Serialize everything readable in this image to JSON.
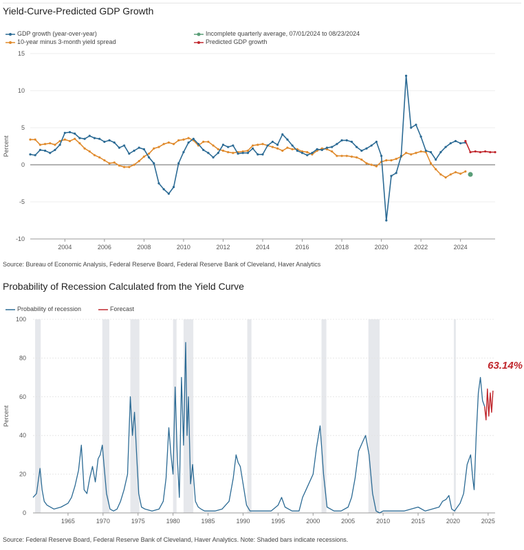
{
  "chart1": {
    "title": "Yield-Curve-Predicted GDP Growth",
    "legend": {
      "gdp": "GDP growth (year-over-year)",
      "spread": "10-year minus 3-month yield spread",
      "incomplete": "Incomplete quarterly average, 07/01/2024 to 08/23/2024",
      "predicted": "Predicted GDP growth"
    },
    "ylabel": "Percent",
    "source": "Source: Bureau of Economic Analysis, Federal Reserve Board, Federal Reserve Bank of Cleveland, Haver Analytics"
  },
  "chart2": {
    "title": "Probability of Recession Calculated from the Yield Curve",
    "legend": {
      "prob": "Probability of recession",
      "forecast": "Forecast"
    },
    "ylabel": "Percent",
    "annotation": "63.14%",
    "source": "Source: Federal Reserve Board, Federal Reserve Bank of Cleveland, Haver Analytics. Note: Shaded bars indicate recessions."
  },
  "colors": {
    "gdp": "#2b6a94",
    "spread": "#e08a2c",
    "incomplete": "#5a9e78",
    "predicted": "#c0272d",
    "recession": "#e6e8ec"
  },
  "chart_data": [
    {
      "type": "line",
      "title": "Yield-Curve-Predicted GDP Growth",
      "ylabel": "Percent",
      "xlim": [
        2002.25,
        2025.75
      ],
      "ylim": [
        -10,
        15
      ],
      "yticks": [
        -10,
        -5,
        0,
        5,
        10,
        15
      ],
      "xticks": [
        2004,
        2006,
        2008,
        2010,
        2012,
        2014,
        2016,
        2018,
        2020,
        2022,
        2024
      ],
      "series": [
        {
          "name": "GDP growth (year-over-year)",
          "x": [
            2002.25,
            2002.5,
            2002.75,
            2003.0,
            2003.25,
            2003.5,
            2003.75,
            2004.0,
            2004.25,
            2004.5,
            2004.75,
            2005.0,
            2005.25,
            2005.5,
            2005.75,
            2006.0,
            2006.25,
            2006.5,
            2006.75,
            2007.0,
            2007.25,
            2007.5,
            2007.75,
            2008.0,
            2008.25,
            2008.5,
            2008.75,
            2009.0,
            2009.25,
            2009.5,
            2009.75,
            2010.0,
            2010.25,
            2010.5,
            2010.75,
            2011.0,
            2011.25,
            2011.5,
            2011.75,
            2012.0,
            2012.25,
            2012.5,
            2012.75,
            2013.0,
            2013.25,
            2013.5,
            2013.75,
            2014.0,
            2014.25,
            2014.5,
            2014.75,
            2015.0,
            2015.25,
            2015.5,
            2015.75,
            2016.0,
            2016.25,
            2016.5,
            2016.75,
            2017.0,
            2017.25,
            2017.5,
            2017.75,
            2018.0,
            2018.25,
            2018.5,
            2018.75,
            2019.0,
            2019.25,
            2019.5,
            2019.75,
            2020.0,
            2020.25,
            2020.5,
            2020.75,
            2021.0,
            2021.25,
            2021.5,
            2021.75,
            2022.0,
            2022.25,
            2022.5,
            2022.75,
            2023.0,
            2023.25,
            2023.5,
            2023.75,
            2024.0,
            2024.25
          ],
          "values": [
            1.4,
            1.3,
            2.0,
            1.9,
            1.6,
            2.0,
            2.7,
            4.3,
            4.4,
            4.2,
            3.6,
            3.5,
            3.9,
            3.6,
            3.5,
            3.1,
            3.3,
            3.0,
            2.3,
            2.6,
            1.5,
            1.9,
            2.3,
            2.1,
            1.0,
            0.2,
            -2.5,
            -3.3,
            -3.9,
            -3.0,
            0.2,
            1.7,
            3.0,
            3.5,
            2.8,
            2.0,
            1.6,
            1.0,
            1.6,
            2.7,
            2.4,
            2.6,
            1.5,
            1.6,
            1.6,
            2.2,
            1.4,
            1.4,
            2.6,
            3.1,
            2.7,
            4.1,
            3.4,
            2.6,
            1.9,
            1.6,
            1.3,
            1.6,
            2.1,
            2.0,
            2.3,
            2.4,
            2.8,
            3.3,
            3.3,
            3.1,
            2.4,
            1.9,
            2.2,
            2.6,
            3.1,
            1.2,
            -7.5,
            -1.5,
            -1.1,
            1.2,
            12.0,
            5.0,
            5.4,
            3.8,
            1.9,
            1.7,
            0.7,
            1.7,
            2.4,
            2.9,
            3.2,
            2.9,
            3.0
          ]
        },
        {
          "name": "10-year minus 3-month yield spread",
          "x": [
            2002.25,
            2002.5,
            2002.75,
            2003.0,
            2003.25,
            2003.5,
            2003.75,
            2004.0,
            2004.25,
            2004.5,
            2004.75,
            2005.0,
            2005.25,
            2005.5,
            2005.75,
            2006.0,
            2006.25,
            2006.5,
            2006.75,
            2007.0,
            2007.25,
            2007.5,
            2007.75,
            2008.0,
            2008.25,
            2008.5,
            2008.75,
            2009.0,
            2009.25,
            2009.5,
            2009.75,
            2010.0,
            2010.25,
            2010.5,
            2010.75,
            2011.0,
            2011.25,
            2011.5,
            2011.75,
            2012.0,
            2012.25,
            2012.5,
            2012.75,
            2013.0,
            2013.25,
            2013.5,
            2013.75,
            2014.0,
            2014.25,
            2014.5,
            2014.75,
            2015.0,
            2015.25,
            2015.5,
            2015.75,
            2016.0,
            2016.25,
            2016.5,
            2016.75,
            2017.0,
            2017.25,
            2017.5,
            2017.75,
            2018.0,
            2018.25,
            2018.5,
            2018.75,
            2019.0,
            2019.25,
            2019.5,
            2019.75,
            2020.0,
            2020.25,
            2020.5,
            2020.75,
            2021.0,
            2021.25,
            2021.5,
            2021.75,
            2022.0,
            2022.25,
            2022.5,
            2022.75,
            2023.0,
            2023.25,
            2023.5,
            2023.75,
            2024.0,
            2024.25
          ],
          "values": [
            3.4,
            3.4,
            2.7,
            2.8,
            2.9,
            2.7,
            3.2,
            3.4,
            3.2,
            3.5,
            2.9,
            2.2,
            1.8,
            1.3,
            1.0,
            0.6,
            0.2,
            0.3,
            -0.1,
            -0.3,
            -0.3,
            0.0,
            0.5,
            1.1,
            1.5,
            2.2,
            2.4,
            2.8,
            3.0,
            2.8,
            3.3,
            3.4,
            3.6,
            3.3,
            2.6,
            3.1,
            3.1,
            2.6,
            2.1,
            1.9,
            1.7,
            1.6,
            1.7,
            1.8,
            1.9,
            2.6,
            2.7,
            2.8,
            2.6,
            2.4,
            2.2,
            1.9,
            2.3,
            2.1,
            2.1,
            1.8,
            1.7,
            1.4,
            1.9,
            2.2,
            2.1,
            1.8,
            1.2,
            1.2,
            1.2,
            1.1,
            1.0,
            0.7,
            0.2,
            0.0,
            -0.2,
            0.4,
            0.6,
            0.6,
            0.8,
            1.1,
            1.6,
            1.4,
            1.6,
            1.8,
            1.7,
            0.2,
            -0.6,
            -1.3,
            -1.7,
            -1.3,
            -1.0,
            -1.2,
            -0.9
          ]
        },
        {
          "name": "Incomplete quarterly average, 07/01/2024 to 08/23/2024",
          "x": [
            2024.5
          ],
          "values": [
            -1.3
          ]
        },
        {
          "name": "Predicted GDP growth",
          "x": [
            2024.25,
            2024.5,
            2024.75,
            2025.0,
            2025.25,
            2025.5,
            2025.75
          ],
          "values": [
            3.2,
            1.7,
            1.8,
            1.7,
            1.8,
            1.7,
            1.7
          ]
        }
      ]
    },
    {
      "type": "line",
      "title": "Probability of Recession Calculated from the Yield Curve",
      "ylabel": "Percent",
      "xlim": [
        1960,
        2026
      ],
      "ylim": [
        0,
        100
      ],
      "yticks": [
        0,
        20,
        40,
        60,
        80,
        100
      ],
      "xticks": [
        1965,
        1970,
        1975,
        1980,
        1985,
        1990,
        1995,
        2000,
        2005,
        2010,
        2015,
        2020,
        2025
      ],
      "recessions": [
        [
          1960.3,
          1961.1
        ],
        [
          1969.9,
          1970.9
        ],
        [
          1973.9,
          1975.2
        ],
        [
          1980.0,
          1980.5
        ],
        [
          1981.5,
          1982.9
        ],
        [
          1990.6,
          1991.2
        ],
        [
          2001.2,
          2001.9
        ],
        [
          2007.9,
          2009.5
        ],
        [
          2020.1,
          2020.3
        ]
      ],
      "series": [
        {
          "name": "Probability of recession",
          "x": [
            1960.0,
            1960.5,
            1961.0,
            1961.3,
            1961.6,
            1962.0,
            1963.0,
            1964.0,
            1965.0,
            1965.5,
            1966.0,
            1966.5,
            1966.9,
            1967.3,
            1967.7,
            1968.1,
            1968.5,
            1968.9,
            1969.3,
            1969.6,
            1969.9,
            1970.2,
            1970.5,
            1971.0,
            1971.5,
            1972.0,
            1972.5,
            1973.0,
            1973.5,
            1973.9,
            1974.2,
            1974.5,
            1974.8,
            1975.1,
            1975.5,
            1976.0,
            1977.0,
            1978.0,
            1978.6,
            1979.0,
            1979.4,
            1979.7,
            1980.0,
            1980.3,
            1980.6,
            1980.9,
            1981.2,
            1981.5,
            1981.8,
            1982.0,
            1982.2,
            1982.5,
            1982.8,
            1983.2,
            1983.6,
            1984.0,
            1984.5,
            1985.0,
            1986.0,
            1987.0,
            1988.0,
            1988.6,
            1989.0,
            1989.3,
            1989.6,
            1990.0,
            1990.5,
            1991.0,
            1992.0,
            1993.0,
            1994.0,
            1995.0,
            1995.5,
            1996.0,
            1997.0,
            1998.0,
            1998.5,
            1999.0,
            2000.0,
            2000.5,
            2001.0,
            2001.5,
            2002.0,
            2003.0,
            2004.0,
            2005.0,
            2005.5,
            2006.0,
            2006.5,
            2007.0,
            2007.5,
            2008.0,
            2008.5,
            2009.0,
            2009.5,
            2010.0,
            2011.0,
            2012.0,
            2013.0,
            2014.0,
            2015.0,
            2016.0,
            2017.0,
            2018.0,
            2018.5,
            2019.0,
            2019.4,
            2019.8,
            2020.2,
            2020.6,
            2021.0,
            2021.5,
            2022.0,
            2022.5,
            2022.8,
            2023.0,
            2023.3,
            2023.6,
            2023.9,
            2024.2,
            2024.5
          ],
          "values": [
            8,
            10,
            23,
            12,
            6,
            4,
            2,
            3,
            5,
            8,
            14,
            22,
            35,
            12,
            10,
            18,
            24,
            16,
            28,
            30,
            35,
            22,
            10,
            2,
            1,
            2,
            6,
            12,
            20,
            60,
            40,
            52,
            30,
            10,
            3,
            2,
            1,
            2,
            6,
            18,
            44,
            30,
            20,
            65,
            30,
            8,
            70,
            35,
            88,
            40,
            60,
            15,
            25,
            6,
            3,
            2,
            1,
            1,
            1,
            2,
            6,
            18,
            30,
            26,
            24,
            15,
            4,
            1,
            1,
            1,
            1,
            4,
            8,
            3,
            1,
            1,
            8,
            12,
            20,
            34,
            45,
            20,
            3,
            1,
            1,
            3,
            8,
            18,
            32,
            36,
            40,
            30,
            10,
            1,
            0,
            1,
            1,
            1,
            1,
            2,
            3,
            1,
            2,
            3,
            6,
            7,
            9,
            2,
            1,
            3,
            5,
            10,
            25,
            30,
            18,
            12,
            40,
            62,
            70,
            58,
            55
          ]
        },
        {
          "name": "Forecast",
          "x": [
            2024.5,
            2024.7,
            2024.9,
            2025.1,
            2025.3,
            2025.5,
            2025.7
          ],
          "values": [
            55,
            48,
            64,
            50,
            62,
            52,
            63.14
          ]
        }
      ]
    }
  ]
}
